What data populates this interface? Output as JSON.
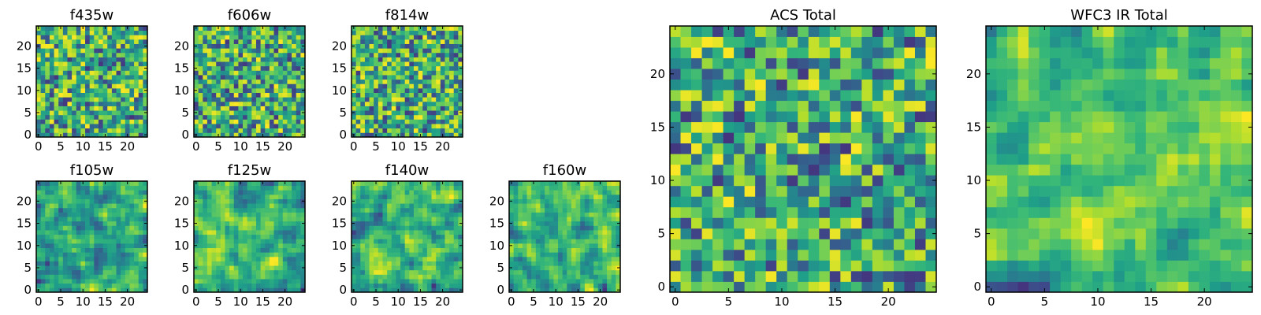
{
  "chart_data": [
    {
      "id": "f435w",
      "type": "heatmap",
      "title": "f435w",
      "grid_size": 25,
      "xticks": [
        0,
        5,
        10,
        15,
        20
      ],
      "yticks": [
        0,
        5,
        10,
        15,
        20
      ],
      "colormap": "viridis",
      "smoothness": 0,
      "seed": 11
    },
    {
      "id": "f606w",
      "type": "heatmap",
      "title": "f606w",
      "grid_size": 25,
      "xticks": [
        0,
        5,
        10,
        15,
        20
      ],
      "yticks": [
        0,
        5,
        10,
        15,
        20
      ],
      "colormap": "viridis",
      "smoothness": 0,
      "seed": 23
    },
    {
      "id": "f814w",
      "type": "heatmap",
      "title": "f814w",
      "grid_size": 25,
      "xticks": [
        0,
        5,
        10,
        15,
        20
      ],
      "yticks": [
        0,
        5,
        10,
        15,
        20
      ],
      "colormap": "viridis",
      "smoothness": 0,
      "seed": 37
    },
    {
      "id": "f105w",
      "type": "heatmap",
      "title": "f105w",
      "grid_size": 25,
      "xticks": [
        0,
        5,
        10,
        15,
        20
      ],
      "yticks": [
        0,
        5,
        10,
        15,
        20
      ],
      "colormap": "viridis",
      "smoothness": 1,
      "seed": 41
    },
    {
      "id": "f125w",
      "type": "heatmap",
      "title": "f125w",
      "grid_size": 25,
      "xticks": [
        0,
        5,
        10,
        15,
        20
      ],
      "yticks": [
        0,
        5,
        10,
        15,
        20
      ],
      "colormap": "viridis",
      "smoothness": 1,
      "seed": 53
    },
    {
      "id": "f140w",
      "type": "heatmap",
      "title": "f140w",
      "grid_size": 25,
      "xticks": [
        0,
        5,
        10,
        15,
        20
      ],
      "yticks": [
        0,
        5,
        10,
        15,
        20
      ],
      "colormap": "viridis",
      "smoothness": 1,
      "seed": 67
    },
    {
      "id": "f160w",
      "type": "heatmap",
      "title": "f160w",
      "grid_size": 25,
      "xticks": [
        0,
        5,
        10,
        15,
        20
      ],
      "yticks": [
        0,
        5,
        10,
        15,
        20
      ],
      "colormap": "viridis",
      "smoothness": 1,
      "seed": 79
    },
    {
      "id": "acs_total",
      "type": "heatmap",
      "title": "ACS Total",
      "grid_size": 25,
      "xticks": [
        0,
        5,
        10,
        15,
        20
      ],
      "yticks": [
        0,
        5,
        10,
        15,
        20
      ],
      "colormap": "viridis",
      "smoothness": 0,
      "seed": 83
    },
    {
      "id": "wfc3_ir_total",
      "type": "heatmap",
      "title": "WFC3 IR Total",
      "grid_size": 25,
      "xticks": [
        0,
        5,
        10,
        15,
        20
      ],
      "yticks": [
        0,
        5,
        10,
        15,
        20
      ],
      "colormap": "viridis",
      "smoothness": 1,
      "seed": 97
    }
  ]
}
